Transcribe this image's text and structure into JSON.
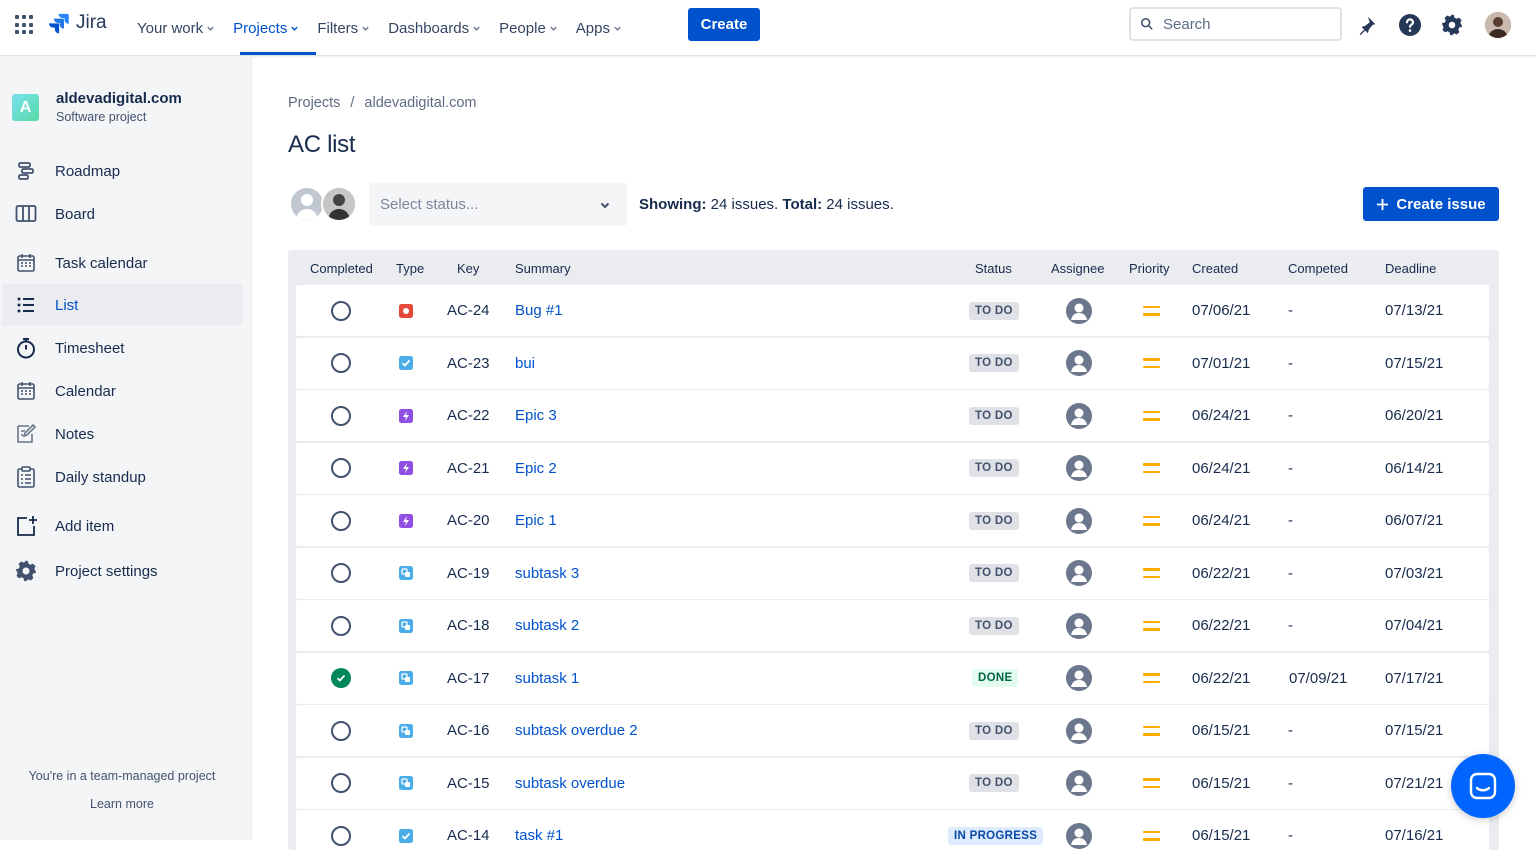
{
  "topnav": {
    "logo_text": "Jira",
    "items": [
      {
        "label": "Your work"
      },
      {
        "label": "Projects"
      },
      {
        "label": "Filters"
      },
      {
        "label": "Dashboards"
      },
      {
        "label": "People"
      },
      {
        "label": "Apps"
      }
    ],
    "create_label": "Create",
    "search_placeholder": "Search"
  },
  "sidebar": {
    "project_avatar_letter": "A",
    "project_name": "aldevadigital.com",
    "project_type": "Software project",
    "items": [
      {
        "label": "Roadmap",
        "icon": "roadmap-icon"
      },
      {
        "label": "Board",
        "icon": "board-icon"
      },
      {
        "label": "Task calendar",
        "icon": "task-calendar-icon"
      },
      {
        "label": "List",
        "icon": "list-icon"
      },
      {
        "label": "Timesheet",
        "icon": "timesheet-icon"
      },
      {
        "label": "Calendar",
        "icon": "calendar-icon"
      },
      {
        "label": "Notes",
        "icon": "notes-icon"
      },
      {
        "label": "Daily standup",
        "icon": "daily-standup-icon"
      },
      {
        "label": "Add item",
        "icon": "add-item-icon"
      },
      {
        "label": "Project settings",
        "icon": "gear-icon"
      }
    ],
    "footer_text": "You're in a team-managed project",
    "learn_more": "Learn more"
  },
  "main": {
    "breadcrumb": [
      "Projects",
      "aldevadigital.com"
    ],
    "breadcrumb_sep": "/",
    "title": "AC list",
    "status_placeholder": "Select status...",
    "showing_label": "Showing:",
    "showing_value": "24 issues.",
    "total_label": "Total:",
    "total_value": "24 issues.",
    "create_issue_label": "Create issue"
  },
  "table": {
    "headers": [
      "Completed",
      "Type",
      "Key",
      "Summary",
      "Status",
      "Assignee",
      "Priority",
      "Created",
      "Competed",
      "Deadline"
    ],
    "rows": [
      {
        "completed": false,
        "type": "bug",
        "key": "AC-24",
        "summary": "Bug #1",
        "status": "TO DO",
        "created": "07/06/21",
        "completed_date": "-",
        "deadline": "07/13/21"
      },
      {
        "completed": false,
        "type": "task",
        "key": "AC-23",
        "summary": "bui",
        "status": "TO DO",
        "created": "07/01/21",
        "completed_date": "-",
        "deadline": "07/15/21"
      },
      {
        "completed": false,
        "type": "epic",
        "key": "AC-22",
        "summary": "Epic 3",
        "status": "TO DO",
        "created": "06/24/21",
        "completed_date": "-",
        "deadline": "06/20/21"
      },
      {
        "completed": false,
        "type": "epic",
        "key": "AC-21",
        "summary": "Epic 2",
        "status": "TO DO",
        "created": "06/24/21",
        "completed_date": "-",
        "deadline": "06/14/21"
      },
      {
        "completed": false,
        "type": "epic",
        "key": "AC-20",
        "summary": "Epic 1",
        "status": "TO DO",
        "created": "06/24/21",
        "completed_date": "-",
        "deadline": "06/07/21"
      },
      {
        "completed": false,
        "type": "subtask",
        "key": "AC-19",
        "summary": "subtask 3",
        "status": "TO DO",
        "created": "06/22/21",
        "completed_date": "-",
        "deadline": "07/03/21"
      },
      {
        "completed": false,
        "type": "subtask",
        "key": "AC-18",
        "summary": "subtask 2",
        "status": "TO DO",
        "created": "06/22/21",
        "completed_date": "-",
        "deadline": "07/04/21"
      },
      {
        "completed": true,
        "type": "subtask",
        "key": "AC-17",
        "summary": "subtask 1",
        "status": "DONE",
        "created": "06/22/21",
        "completed_date": "07/09/21",
        "deadline": "07/17/21"
      },
      {
        "completed": false,
        "type": "subtask",
        "key": "AC-16",
        "summary": "subtask overdue 2",
        "status": "TO DO",
        "created": "06/15/21",
        "completed_date": "-",
        "deadline": "07/15/21"
      },
      {
        "completed": false,
        "type": "subtask",
        "key": "AC-15",
        "summary": "subtask overdue",
        "status": "TO DO",
        "created": "06/15/21",
        "completed_date": "-",
        "deadline": "07/21/21"
      },
      {
        "completed": false,
        "type": "task",
        "key": "AC-14",
        "summary": "task #1",
        "status": "IN PROGRESS",
        "created": "06/15/21",
        "completed_date": "-",
        "deadline": "07/16/21"
      }
    ]
  },
  "colors": {
    "primary": "#0052CC",
    "bug": "#E5493A",
    "task": "#4BADE8",
    "epic": "#904EE2",
    "subtask": "#4BADE8",
    "priority_medium": "#FFAB00",
    "done_check": "#00875A"
  }
}
